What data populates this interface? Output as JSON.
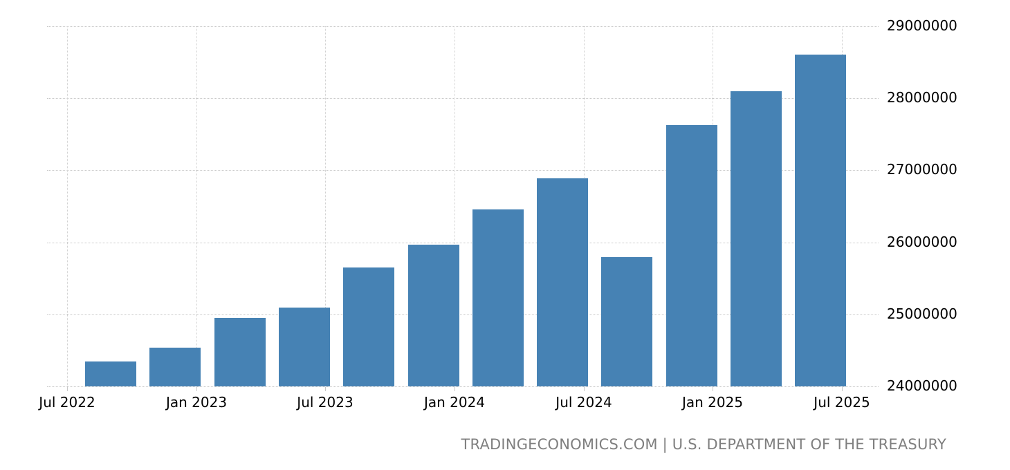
{
  "chart_data": {
    "type": "bar",
    "title": "",
    "xlabel": "",
    "ylabel": "",
    "categories": [
      "Sep 2022",
      "Dec 2022",
      "Mar 2023",
      "Jun 2023",
      "Sep 2023",
      "Dec 2023",
      "Mar 2024",
      "Jun 2024",
      "Sep 2024",
      "Dec 2024",
      "Mar 2025",
      "Jun 2025"
    ],
    "values": [
      24350000,
      24540000,
      24950000,
      25090000,
      25650000,
      25970000,
      26460000,
      26890000,
      25790000,
      27630000,
      28100000,
      28610000
    ],
    "ylim": [
      24000000,
      29000000
    ],
    "y_ticks": [
      "24000000",
      "25000000",
      "26000000",
      "27000000",
      "28000000",
      "29000000"
    ],
    "x_ticks": [
      "Jul 2022",
      "Jan 2023",
      "Jul 2023",
      "Jan 2024",
      "Jul 2024",
      "Jan 2025",
      "Jul 2025"
    ],
    "y_axis_position": "right",
    "grid": true,
    "bar_color": "#4682b4",
    "legend": null
  },
  "source": "TRADINGECONOMICS.COM | U.S. DEPARTMENT OF THE TREASURY",
  "colors": {
    "bar": "#4682b4",
    "grid": "#c8c8c8",
    "source_text": "#7f7f7f"
  }
}
